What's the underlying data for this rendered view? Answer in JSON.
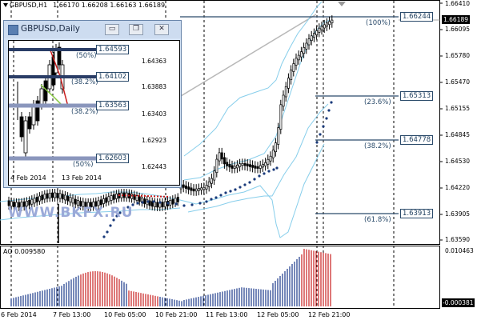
{
  "main_chart": {
    "header": {
      "symbol": "GBPUSD,H1",
      "ohlc": "1.66170 1.66208 1.66163 1.66189"
    },
    "price_axis": [
      "1.66410",
      "1.66095",
      "1.65780",
      "1.65470",
      "1.65155",
      "1.64845",
      "1.64530",
      "1.64220",
      "1.63905",
      "1.63590"
    ],
    "current_price": "1.66189",
    "fib_labels": [
      {
        "price": "1.66244",
        "pct": "(100%)"
      },
      {
        "price": "1.65313",
        "pct": "(23.6%)"
      },
      {
        "price": "1.64778",
        "pct": "(38.2%)"
      },
      {
        "price": "1.63913",
        "pct": "(61.8%)"
      }
    ],
    "watermark": "WWW.BKFX.RU"
  },
  "oscillator": {
    "label": "AO 0.009580",
    "axis_top": "0.010463",
    "axis_bottom": "-0.000381"
  },
  "time_axis": [
    "6 Feb 2014",
    "7 Feb 13:00",
    "10 Feb 05:00",
    "10 Feb 21:00",
    "11 Feb 13:00",
    "12 Feb 05:00",
    "12 Feb 21:00"
  ],
  "inset": {
    "title": "GBPUSD,Daily",
    "buttons": {
      "minimize": "▭",
      "restore": "❐",
      "close": "✕"
    },
    "price_axis": [
      "1.64363",
      "1.63883",
      "1.63403",
      "1.62923",
      "1.62443"
    ],
    "levels": [
      {
        "price": "1.64593",
        "pct": "(50%)"
      },
      {
        "price": "1.64102",
        "pct": "(38.2%)"
      },
      {
        "price": "1.63563",
        "pct": "(38.2%)"
      },
      {
        "price": "1.62603",
        "pct": "(50%)"
      }
    ],
    "dates": [
      "4 Feb 2014",
      "13 Feb 2014"
    ]
  },
  "colors": {
    "fib_line": "#2a4a6a",
    "bands": "#87ceeb",
    "dots": "#1a3a7a",
    "ao_up": "#1a3a8a",
    "ao_down": "#c81e1e",
    "watermark": "#9aa9d8"
  }
}
